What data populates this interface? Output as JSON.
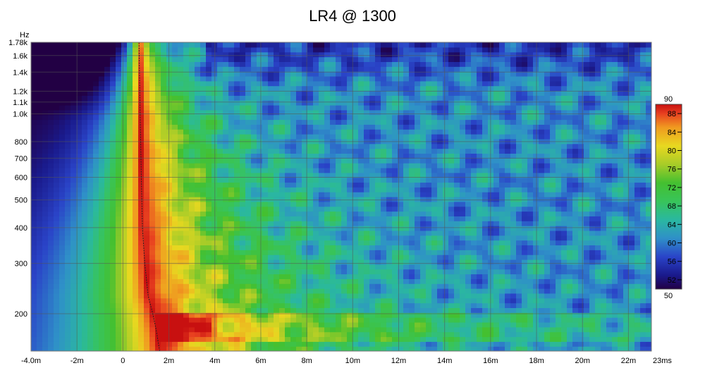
{
  "chart_data": {
    "type": "heatmap",
    "title": "LR4 @ 1300",
    "x_axis": {
      "unit_label": "",
      "range_ms": [
        -4.0,
        23.0
      ],
      "ticks": [
        {
          "value": -4,
          "label": "-4.0m"
        },
        {
          "value": -2,
          "label": "-2m"
        },
        {
          "value": 0,
          "label": "0"
        },
        {
          "value": 2,
          "label": "2m"
        },
        {
          "value": 4,
          "label": "4m"
        },
        {
          "value": 6,
          "label": "6m"
        },
        {
          "value": 8,
          "label": "8m"
        },
        {
          "value": 10,
          "label": "10m"
        },
        {
          "value": 12,
          "label": "12m"
        },
        {
          "value": 14,
          "label": "14m"
        },
        {
          "value": 16,
          "label": "16m"
        },
        {
          "value": 18,
          "label": "18m"
        },
        {
          "value": 20,
          "label": "20m"
        },
        {
          "value": 22,
          "label": "22m"
        },
        {
          "value": 23,
          "label": "23ms"
        }
      ]
    },
    "y_axis": {
      "unit_label": "Hz",
      "scale": "log",
      "range_hz": [
        148,
        1780
      ],
      "ticks": [
        {
          "value": 1780,
          "label": "1.78k"
        },
        {
          "value": 1600,
          "label": "1.6k"
        },
        {
          "value": 1400,
          "label": "1.4k"
        },
        {
          "value": 1200,
          "label": "1.2k"
        },
        {
          "value": 1100,
          "label": "1.1k"
        },
        {
          "value": 1000,
          "label": "1.0k"
        },
        {
          "value": 800,
          "label": "800"
        },
        {
          "value": 700,
          "label": "700"
        },
        {
          "value": 600,
          "label": "600"
        },
        {
          "value": 500,
          "label": "500"
        },
        {
          "value": 400,
          "label": "400"
        },
        {
          "value": 300,
          "label": "300"
        },
        {
          "value": 200,
          "label": "200"
        }
      ]
    },
    "color_scale": {
      "min": 50,
      "max": 90,
      "min_label": "50",
      "max_label": "90",
      "tick_values": [
        88,
        84,
        80,
        76,
        72,
        68,
        64,
        60,
        56,
        52
      ],
      "tick_labels": [
        "88",
        "84",
        "80",
        "76",
        "72",
        "68",
        "64",
        "60",
        "56",
        "52"
      ],
      "stops": [
        {
          "value": 50,
          "color": "#220044"
        },
        {
          "value": 53,
          "color": "#1a1a8c"
        },
        {
          "value": 57,
          "color": "#2a44c8"
        },
        {
          "value": 61,
          "color": "#2f90c8"
        },
        {
          "value": 65,
          "color": "#2ab8a0"
        },
        {
          "value": 69,
          "color": "#38c45a"
        },
        {
          "value": 73,
          "color": "#44c030"
        },
        {
          "value": 77,
          "color": "#a8cc28"
        },
        {
          "value": 81,
          "color": "#e8d820"
        },
        {
          "value": 85,
          "color": "#f09a20"
        },
        {
          "value": 88,
          "color": "#e84020"
        },
        {
          "value": 90,
          "color": "#c81010"
        }
      ]
    },
    "ridge_line": [
      {
        "hz": 1780,
        "ms": 0.7
      },
      {
        "hz": 1000,
        "ms": 0.75
      },
      {
        "hz": 600,
        "ms": 0.8
      },
      {
        "hz": 400,
        "ms": 0.85
      },
      {
        "hz": 300,
        "ms": 0.95
      },
      {
        "hz": 230,
        "ms": 1.1
      },
      {
        "hz": 200,
        "ms": 1.3
      },
      {
        "hz": 175,
        "ms": 1.45
      },
      {
        "hz": 148,
        "ms": 1.6
      }
    ],
    "grid": true,
    "legend": "right"
  }
}
